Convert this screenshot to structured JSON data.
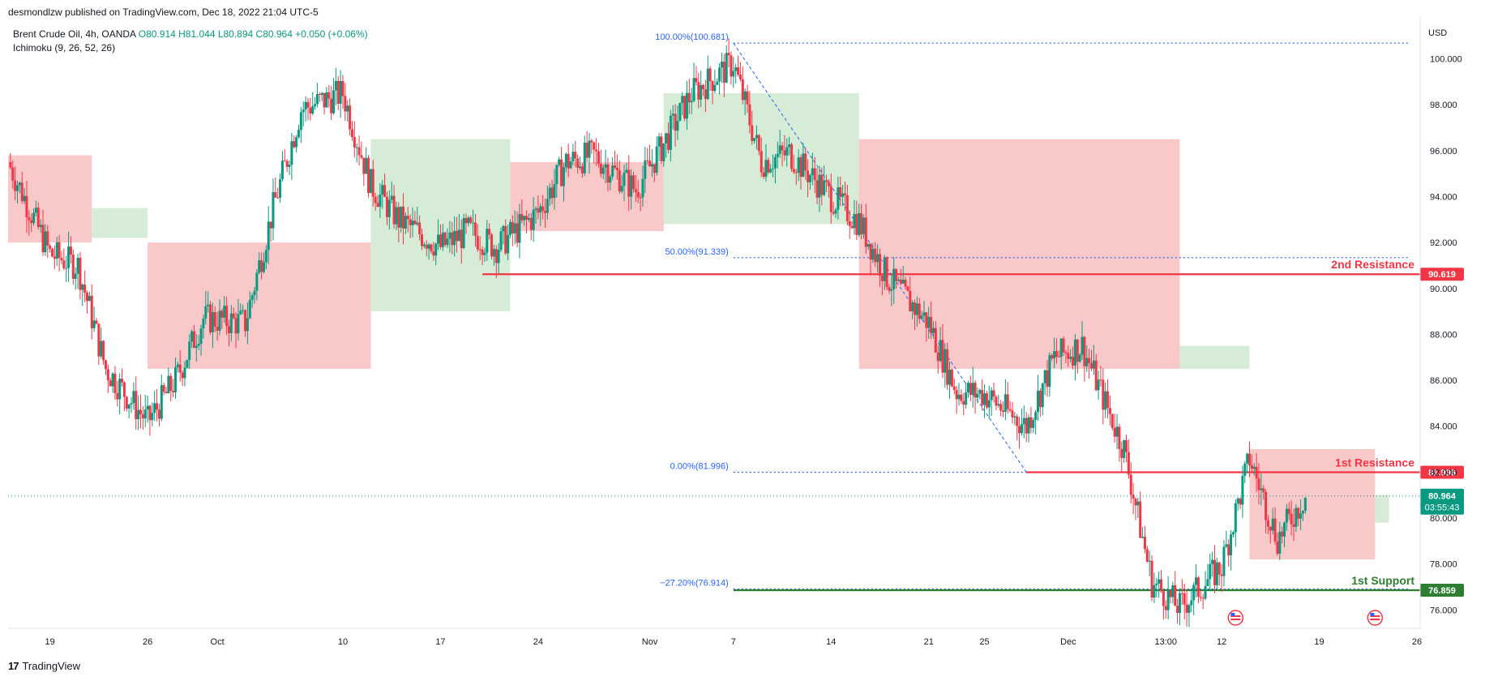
{
  "header": {
    "credit": "desmondlzw published on TradingView.com, Dec 18, 2022 21:04 UTC-5"
  },
  "legend": {
    "symbol": "Brent Crude Oil, 4h, OANDA",
    "ohlc": "O80.914  H81.044  L80.894  C80.964  +0.050 (+0.06%)",
    "indicator": "Ichimoku (9, 26, 52, 26)"
  },
  "footer": {
    "brand": "TradingView"
  },
  "colors": {
    "up": "#089981",
    "down": "#f23645",
    "resistance": "#f23645",
    "support": "#2e7d32",
    "fib": "#2962ff",
    "cloud_bear": "#f7b6b6",
    "cloud_bull": "#c8e6c9"
  },
  "chart_data": {
    "type": "candlestick",
    "currency": "USD",
    "y_range": [
      75.2,
      101.5
    ],
    "y_ticks": [
      76,
      78,
      80,
      82,
      84,
      86,
      88,
      90,
      92,
      94,
      96,
      98,
      100
    ],
    "y_tick_labels": [
      "76.000",
      "78.000",
      "80.000",
      "82.000",
      "84.000",
      "86.000",
      "88.000",
      "90.000",
      "92.000",
      "94.000",
      "96.000",
      "98.000",
      "100.000"
    ],
    "x_range": [
      "2022-09-16",
      "2022-12-26"
    ],
    "x_ticks": [
      {
        "date": "2022-09-19",
        "label": "19"
      },
      {
        "date": "2022-09-26",
        "label": "26"
      },
      {
        "date": "2022-10-01",
        "label": "Oct"
      },
      {
        "date": "2022-10-10",
        "label": "10"
      },
      {
        "date": "2022-10-17",
        "label": "17"
      },
      {
        "date": "2022-10-24",
        "label": "24"
      },
      {
        "date": "2022-11-01",
        "label": "Nov"
      },
      {
        "date": "2022-11-07",
        "label": "7"
      },
      {
        "date": "2022-11-14",
        "label": "14"
      },
      {
        "date": "2022-11-21",
        "label": "21"
      },
      {
        "date": "2022-11-25",
        "label": "25"
      },
      {
        "date": "2022-12-01",
        "label": "Dec"
      },
      {
        "date": "2022-12-08",
        "label": "13:00"
      },
      {
        "date": "2022-12-12",
        "label": "12"
      },
      {
        "date": "2022-12-19",
        "label": "19"
      },
      {
        "date": "2022-12-26",
        "label": "26"
      }
    ],
    "price_path": [
      [
        "2022-09-16",
        95.5
      ],
      [
        "2022-09-19",
        91.5
      ],
      [
        "2022-09-21",
        91.0
      ],
      [
        "2022-09-23",
        86.5
      ],
      [
        "2022-09-26",
        84.2
      ],
      [
        "2022-09-28",
        86.0
      ],
      [
        "2022-09-30",
        88.7
      ],
      [
        "2022-10-03",
        88.5
      ],
      [
        "2022-10-05",
        93.5
      ],
      [
        "2022-10-07",
        97.8
      ],
      [
        "2022-10-10",
        98.5
      ],
      [
        "2022-10-12",
        94.5
      ],
      [
        "2022-10-14",
        93.0
      ],
      [
        "2022-10-17",
        91.8
      ],
      [
        "2022-10-19",
        92.5
      ],
      [
        "2022-10-21",
        91.8
      ],
      [
        "2022-10-24",
        93.3
      ],
      [
        "2022-10-26",
        95.5
      ],
      [
        "2022-10-28",
        95.8
      ],
      [
        "2022-10-31",
        94.3
      ],
      [
        "2022-11-02",
        96.3
      ],
      [
        "2022-11-04",
        98.5
      ],
      [
        "2022-11-07",
        99.8
      ],
      [
        "2022-11-09",
        95.5
      ],
      [
        "2022-11-11",
        95.9
      ],
      [
        "2022-11-14",
        94.0
      ],
      [
        "2022-11-16",
        92.9
      ],
      [
        "2022-11-18",
        90.5
      ],
      [
        "2022-11-21",
        88.5
      ],
      [
        "2022-11-23",
        85.5
      ],
      [
        "2022-11-25",
        85.4
      ],
      [
        "2022-11-28",
        84.0
      ],
      [
        "2022-11-30",
        87.0
      ],
      [
        "2022-12-02",
        87.5
      ],
      [
        "2022-12-05",
        83.0
      ],
      [
        "2022-12-07",
        77.2
      ],
      [
        "2022-12-09",
        76.1
      ],
      [
        "2022-12-12",
        77.9
      ],
      [
        "2022-12-14",
        82.6
      ],
      [
        "2022-12-16",
        79.1
      ],
      [
        "2022-12-18",
        80.96
      ]
    ],
    "ichimoku_cloud": [
      {
        "from": "2022-09-16",
        "to": "2022-09-22",
        "top": 95.8,
        "bottom": 92.0,
        "kind": "bear"
      },
      {
        "from": "2022-09-22",
        "to": "2022-09-26",
        "top": 93.5,
        "bottom": 92.2,
        "kind": "bull"
      },
      {
        "from": "2022-09-26",
        "to": "2022-10-12",
        "top": 92.0,
        "bottom": 86.5,
        "kind": "bear"
      },
      {
        "from": "2022-10-12",
        "to": "2022-10-22",
        "top": 96.5,
        "bottom": 89.0,
        "kind": "bull"
      },
      {
        "from": "2022-10-22",
        "to": "2022-11-02",
        "top": 95.5,
        "bottom": 92.5,
        "kind": "bear"
      },
      {
        "from": "2022-11-02",
        "to": "2022-11-16",
        "top": 98.5,
        "bottom": 92.8,
        "kind": "bull"
      },
      {
        "from": "2022-11-16",
        "to": "2022-12-09",
        "top": 96.5,
        "bottom": 86.5,
        "kind": "bear"
      },
      {
        "from": "2022-12-09",
        "to": "2022-12-14",
        "top": 87.5,
        "bottom": 86.5,
        "kind": "bull"
      },
      {
        "from": "2022-12-14",
        "to": "2022-12-23",
        "top": 83.0,
        "bottom": 78.2,
        "kind": "bear"
      },
      {
        "from": "2022-12-23",
        "to": "2022-12-24",
        "top": 81.0,
        "bottom": 79.8,
        "kind": "bull"
      }
    ],
    "fibonacci": {
      "from_date": "2022-11-07",
      "to_date": "2022-11-28",
      "levels": [
        {
          "label": "100.00%(100.681)",
          "price": 100.681
        },
        {
          "label": "50.00%(91.339)",
          "price": 91.339
        },
        {
          "label": "0.00%(81.996)",
          "price": 81.996
        },
        {
          "label": "−27.20%(76.914)",
          "price": 76.914
        }
      ]
    },
    "horizontal_levels": [
      {
        "label": "2nd Resistance",
        "price": 90.619,
        "price_label": "90.619",
        "kind": "resistance",
        "from_date": "2022-10-20"
      },
      {
        "label": "1st Resistance",
        "price": 81.996,
        "price_label": "81.996",
        "kind": "resistance",
        "from_date": "2022-11-28"
      },
      {
        "label": "1st Support",
        "price": 76.859,
        "price_label": "76.859",
        "kind": "support",
        "from_date": "2022-11-07"
      }
    ],
    "current_price": {
      "price": 80.964,
      "label": "80.964",
      "countdown": "03:55:43"
    },
    "event_markers": [
      "2022-12-13",
      "2022-12-23"
    ]
  }
}
